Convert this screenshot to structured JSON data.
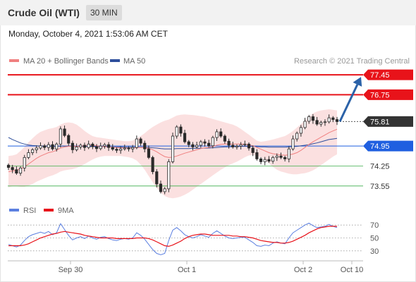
{
  "header": {
    "instrument": "Crude Oil (WTI)",
    "interval": "30 MIN"
  },
  "datetime": "Monday, October 4, 2021 1:53:06 AM CET",
  "credit": "Research © 2021 Trading Central",
  "colors": {
    "resistance": "#e8131a",
    "support": "#3bae4a",
    "pivot": "#1f5fe0",
    "last": "#333333",
    "arrow": "#2b62a8",
    "bollinger": "#fad6d6",
    "ma20": "#f08080",
    "ma50": "#2e4f9c",
    "rsi": "#5b7fe0",
    "rsi_ma": "#e8131a"
  },
  "chart_data": [
    {
      "type": "candlestick",
      "title": "",
      "legend": [
        "MA 20 + Bollinger Bands",
        "MA 50"
      ],
      "x_ticks": [
        "Sep 30",
        "Oct 1",
        "Oct 2",
        "Oct 10"
      ],
      "ylim": [
        73.1,
        77.6
      ],
      "levels": [
        {
          "value": 77.45,
          "label": "77.45",
          "kind": "resistance"
        },
        {
          "value": 76.75,
          "label": "76.75",
          "kind": "resistance"
        },
        {
          "value": 75.81,
          "label": "75.81",
          "kind": "last"
        },
        {
          "value": 74.95,
          "label": "74.95",
          "kind": "pivot"
        },
        {
          "value": 74.25,
          "label": "74.25",
          "kind": "support"
        },
        {
          "value": 73.55,
          "label": "73.55",
          "kind": "support"
        }
      ],
      "close": [
        74.2,
        74.12,
        74.0,
        74.18,
        74.55,
        74.72,
        74.82,
        74.88,
        74.96,
        74.9,
        75.0,
        74.85,
        75.02,
        75.55,
        75.32,
        75.05,
        74.82,
        74.92,
        74.98,
        74.9,
        75.02,
        74.93,
        74.86,
        74.95,
        75.0,
        74.9,
        74.84,
        74.8,
        74.85,
        74.88,
        74.85,
        74.9,
        75.2,
        75.05,
        74.85,
        74.55,
        74.05,
        73.62,
        73.35,
        73.45,
        74.4,
        75.3,
        75.62,
        75.4,
        75.1,
        75.0,
        74.92,
        74.98,
        75.1,
        75.05,
        74.96,
        75.25,
        75.45,
        75.3,
        75.12,
        74.98,
        74.92,
        74.95,
        75.0,
        75.02,
        74.88,
        74.72,
        74.5,
        74.4,
        74.48,
        74.42,
        74.55,
        74.6,
        74.55,
        74.5,
        74.85,
        75.2,
        75.4,
        75.6,
        75.82,
        75.98,
        75.85,
        75.72,
        75.78,
        75.8,
        75.94,
        75.88,
        75.81
      ],
      "ma20": [
        74.05,
        74.08,
        74.1,
        74.15,
        74.22,
        74.32,
        74.42,
        74.52,
        74.6,
        74.66,
        74.72,
        74.75,
        74.8,
        74.88,
        74.92,
        74.94,
        74.94,
        74.94,
        74.95,
        74.96,
        74.98,
        74.98,
        74.96,
        74.94,
        74.93,
        74.92,
        74.91,
        74.9,
        74.89,
        74.89,
        74.88,
        74.88,
        74.9,
        74.9,
        74.89,
        74.87,
        74.82,
        74.75,
        74.66,
        74.58,
        74.55,
        74.56,
        74.6,
        74.65,
        74.7,
        74.74,
        74.78,
        74.82,
        74.86,
        74.89,
        74.9,
        74.94,
        74.98,
        75.01,
        75.02,
        75.02,
        75.02,
        75.02,
        75.02,
        75.01,
        75.0,
        74.96,
        74.9,
        74.84,
        74.78,
        74.72,
        74.68,
        74.66,
        74.64,
        74.63,
        74.64,
        74.67,
        74.72,
        74.8,
        74.9,
        75.01,
        75.1,
        75.18,
        75.26,
        75.34,
        75.42,
        75.48,
        75.54
      ],
      "ma50": [
        75.25,
        75.18,
        75.12,
        75.06,
        75.02,
        74.99,
        74.97,
        74.96,
        74.95,
        74.95,
        74.95,
        74.94,
        74.94,
        74.95,
        74.95,
        74.95,
        74.95,
        74.94,
        74.94,
        74.94,
        74.94,
        74.93,
        74.93,
        74.93,
        74.93,
        74.92,
        74.92,
        74.92,
        74.92,
        74.91,
        74.91,
        74.91,
        74.91,
        74.91,
        74.9,
        74.9,
        74.89,
        74.88,
        74.86,
        74.85,
        74.85,
        74.85,
        74.86,
        74.86,
        74.86,
        74.86,
        74.87,
        74.87,
        74.87,
        74.88,
        74.88,
        74.89,
        74.9,
        74.91,
        74.92,
        74.92,
        74.93,
        74.93,
        74.94,
        74.94,
        74.94,
        74.94,
        74.93,
        74.92,
        74.92,
        74.91,
        74.91,
        74.91,
        74.91,
        74.91,
        74.92,
        74.93,
        74.94,
        74.96,
        74.98,
        75.0,
        75.03,
        75.06,
        75.1,
        75.14,
        75.18,
        75.2,
        75.22
      ],
      "bb_upper": [
        74.6,
        74.62,
        74.66,
        74.78,
        74.92,
        75.08,
        75.22,
        75.35,
        75.45,
        75.5,
        75.55,
        75.58,
        75.62,
        75.7,
        75.76,
        75.78,
        75.76,
        75.7,
        75.6,
        75.48,
        75.38,
        75.3,
        75.26,
        75.24,
        75.22,
        75.2,
        75.18,
        75.16,
        75.14,
        75.12,
        75.12,
        75.14,
        75.22,
        75.3,
        75.4,
        75.52,
        75.62,
        75.7,
        75.78,
        75.84,
        75.88,
        75.95,
        76.02,
        76.05,
        76.06,
        76.05,
        76.04,
        76.02,
        76.0,
        75.98,
        75.94,
        75.9,
        75.86,
        75.82,
        75.78,
        75.74,
        75.7,
        75.64,
        75.55,
        75.45,
        75.35,
        75.24,
        75.14,
        75.1,
        75.12,
        75.15,
        75.18,
        75.22,
        75.26,
        75.3,
        75.38,
        75.48,
        75.6,
        75.72,
        75.86,
        76.0,
        76.1,
        76.16,
        76.2,
        76.22,
        76.24,
        76.22,
        76.2
      ],
      "bb_lower": [
        73.5,
        73.54,
        73.54,
        73.52,
        73.52,
        73.56,
        73.62,
        73.7,
        73.76,
        73.82,
        73.88,
        73.92,
        73.98,
        74.06,
        74.1,
        74.12,
        74.14,
        74.18,
        74.24,
        74.32,
        74.4,
        74.48,
        74.54,
        74.58,
        74.6,
        74.6,
        74.6,
        74.6,
        74.6,
        74.58,
        74.56,
        74.52,
        74.44,
        74.3,
        74.12,
        73.9,
        73.68,
        73.48,
        73.32,
        73.2,
        73.14,
        73.12,
        73.14,
        73.18,
        73.24,
        73.32,
        73.42,
        73.52,
        73.62,
        73.72,
        73.82,
        73.92,
        74.02,
        74.12,
        74.2,
        74.28,
        74.34,
        74.4,
        74.48,
        74.56,
        74.62,
        74.64,
        74.62,
        74.56,
        74.46,
        74.34,
        74.22,
        74.12,
        74.06,
        74.02,
        73.98,
        73.96,
        73.96,
        73.98,
        74.0,
        74.04,
        74.1,
        74.18,
        74.28,
        74.38,
        74.48,
        74.58,
        74.66
      ]
    },
    {
      "type": "line",
      "title": "",
      "legend": [
        "RSI",
        "9MA"
      ],
      "y_ticks": [
        70,
        50,
        30
      ],
      "ylim": [
        20,
        80
      ],
      "rsi": [
        40,
        38,
        36,
        39,
        46,
        52,
        55,
        57,
        59,
        57,
        60,
        55,
        58,
        72,
        63,
        54,
        47,
        50,
        52,
        49,
        53,
        50,
        48,
        51,
        52,
        49,
        47,
        46,
        48,
        49,
        48,
        50,
        58,
        54,
        48,
        40,
        32,
        26,
        24,
        26,
        46,
        62,
        66,
        61,
        55,
        52,
        50,
        52,
        55,
        53,
        51,
        57,
        61,
        57,
        53,
        50,
        49,
        50,
        51,
        51,
        47,
        43,
        38,
        37,
        39,
        38,
        42,
        44,
        42,
        41,
        50,
        58,
        62,
        66,
        70,
        73,
        69,
        66,
        67,
        68,
        71,
        68,
        66
      ],
      "rsi_ma": [
        38,
        38,
        38,
        38,
        39,
        41,
        44,
        47,
        50,
        52,
        54,
        56,
        57,
        59,
        60,
        59,
        58,
        57,
        56,
        54,
        53,
        52,
        51,
        50,
        50,
        50,
        50,
        49,
        49,
        49,
        49,
        49,
        50,
        50,
        50,
        49,
        47,
        44,
        41,
        38,
        37,
        39,
        42,
        45,
        49,
        52,
        54,
        55,
        56,
        56,
        55,
        54,
        54,
        54,
        54,
        54,
        53,
        53,
        52,
        52,
        51,
        50,
        48,
        46,
        45,
        44,
        43,
        43,
        42,
        42,
        43,
        45,
        48,
        51,
        54,
        58,
        61,
        64,
        66,
        67,
        68,
        68,
        68
      ]
    }
  ]
}
